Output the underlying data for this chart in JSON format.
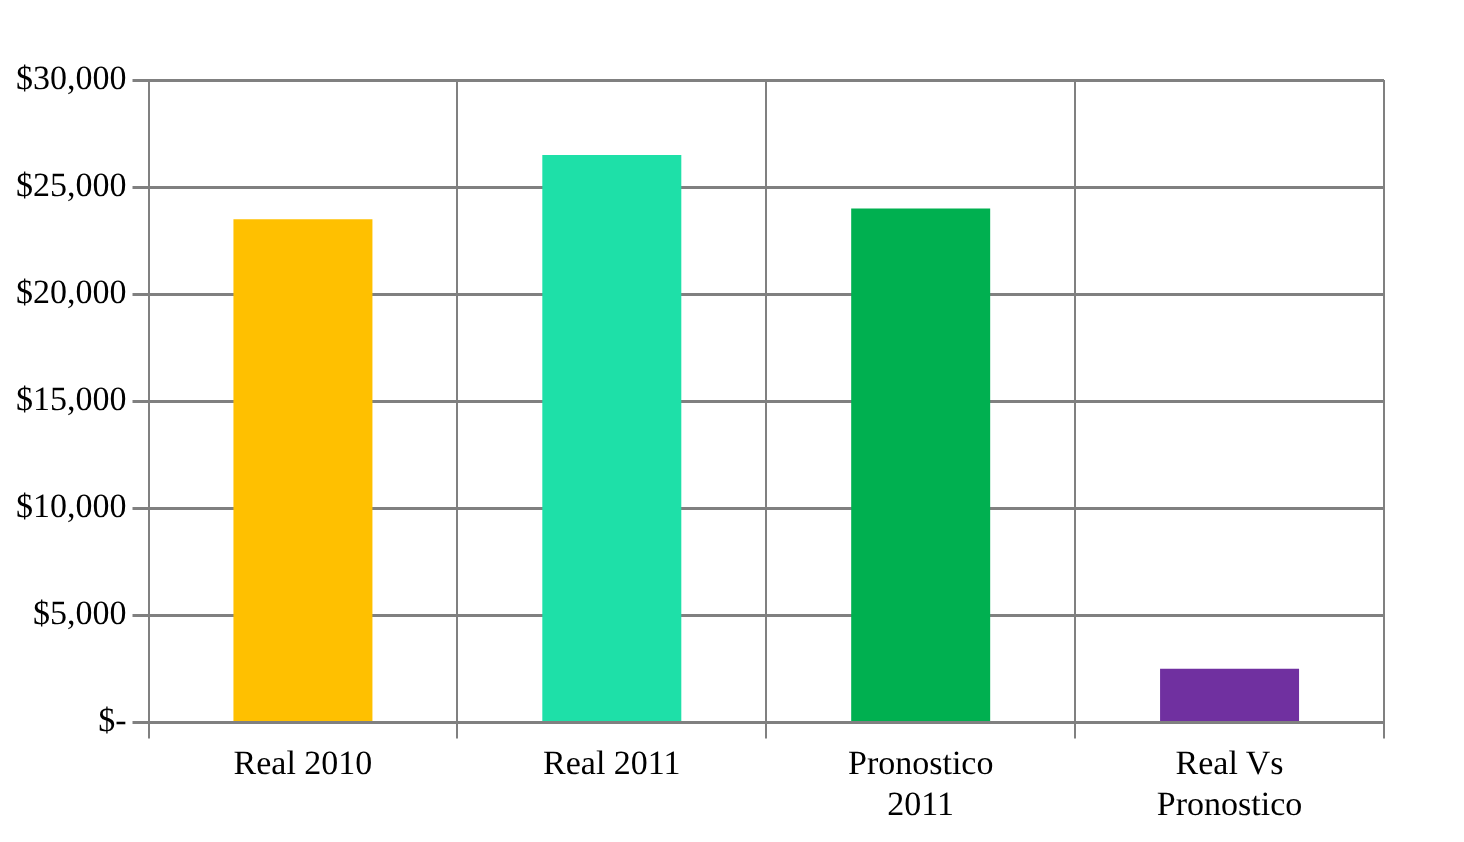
{
  "chart_data": {
    "type": "bar",
    "categories": [
      "Real 2010",
      "Real 2011",
      "Pronostico 2011",
      "Real Vs Pronostico"
    ],
    "values": [
      23500,
      26500,
      24000,
      2500
    ],
    "colors": [
      "#ffc000",
      "#1ee0a8",
      "#00b050",
      "#7030a0"
    ],
    "ylim": [
      0,
      30000
    ],
    "yticks": [
      {
        "value": 0,
        "label": "$-"
      },
      {
        "value": 5000,
        "label": "$5,000"
      },
      {
        "value": 10000,
        "label": "$10,000"
      },
      {
        "value": 15000,
        "label": "$15,000"
      },
      {
        "value": 20000,
        "label": "$20,000"
      },
      {
        "value": 25000,
        "label": "$25,000"
      },
      {
        "value": 30000,
        "label": "$30,000"
      }
    ],
    "grid": true
  }
}
